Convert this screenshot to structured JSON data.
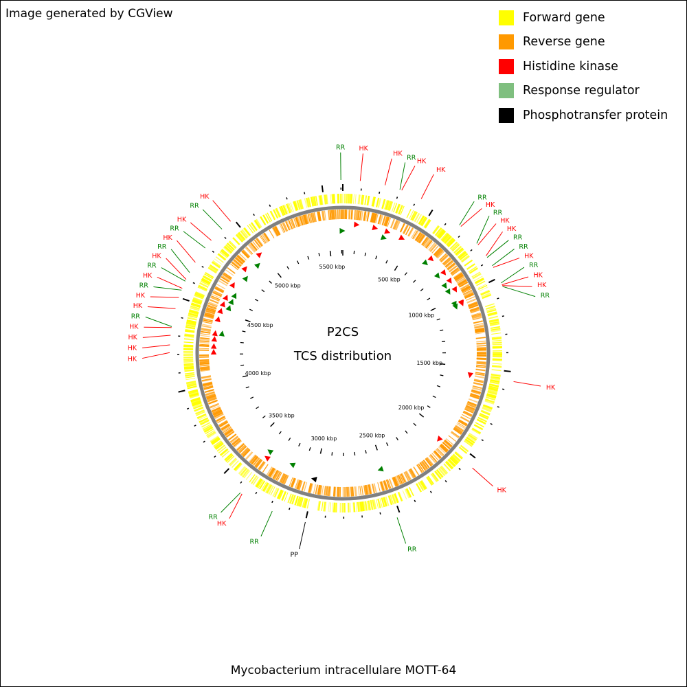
{
  "credit": "Image generated by CGView",
  "caption": "Mycobacterium intracellulare MOTT-64",
  "center": {
    "line1": "P2CS",
    "line2": "TCS distribution"
  },
  "colors": {
    "forward_gene": "#ffff00",
    "reverse_gene": "#ff9900",
    "histidine_kinase": "#ff0000",
    "response_regulator": "#008000",
    "phosphotransfer_protein": "#000000",
    "backbone": "#808080"
  },
  "legend": [
    {
      "label": "Forward gene",
      "color": "#ffff00"
    },
    {
      "label": "Reverse gene",
      "color": "#ff9900"
    },
    {
      "label": "Histidine kinase",
      "color": "#ff0000"
    },
    {
      "label": "Response regulator",
      "color": "#7fbf7f"
    },
    {
      "label": "Phosphotransfer protein",
      "color": "#000000"
    }
  ],
  "genome_length_kbp": 5610,
  "tick_labels": [
    "500 kbp",
    "1000 kbp",
    "1500 kbp",
    "2000 kbp",
    "2500 kbp",
    "3000 kbp",
    "3500 kbp",
    "4000 kbp",
    "4500 kbp",
    "5000 kbp",
    "5500 kbp"
  ],
  "features": [
    {
      "type": "RR",
      "pos_kbp": 5600
    },
    {
      "type": "HK",
      "pos_kbp": 90
    },
    {
      "type": "HK",
      "pos_kbp": 220
    },
    {
      "type": "RR",
      "pos_kbp": 300
    },
    {
      "type": "HK",
      "pos_kbp": 310
    },
    {
      "type": "HK",
      "pos_kbp": 420
    },
    {
      "type": "RR",
      "pos_kbp": 660
    },
    {
      "type": "HK",
      "pos_kbp": 670
    },
    {
      "type": "RR",
      "pos_kbp": 790
    },
    {
      "type": "HK",
      "pos_kbp": 800
    },
    {
      "type": "HK",
      "pos_kbp": 870
    },
    {
      "type": "RR",
      "pos_kbp": 880
    },
    {
      "type": "RR",
      "pos_kbp": 930
    },
    {
      "type": "HK",
      "pos_kbp": 940
    },
    {
      "type": "RR",
      "pos_kbp": 1030
    },
    {
      "type": "HK",
      "pos_kbp": 1040
    },
    {
      "type": "HK",
      "pos_kbp": 1045
    },
    {
      "type": "RR",
      "pos_kbp": 1050
    },
    {
      "type": "HK",
      "pos_kbp": 1550
    },
    {
      "type": "HK",
      "pos_kbp": 2050
    },
    {
      "type": "RR",
      "pos_kbp": 2520
    },
    {
      "type": "PP",
      "pos_kbp": 3000
    },
    {
      "type": "RR",
      "pos_kbp": 3180
    },
    {
      "type": "HK",
      "pos_kbp": 3360
    },
    {
      "type": "RR",
      "pos_kbp": 3370
    },
    {
      "type": "HK",
      "pos_kbp": 4210
    },
    {
      "type": "HK",
      "pos_kbp": 4250
    },
    {
      "type": "HK",
      "pos_kbp": 4300
    },
    {
      "type": "HK",
      "pos_kbp": 4340
    },
    {
      "type": "RR",
      "pos_kbp": 4345
    },
    {
      "type": "HK",
      "pos_kbp": 4440
    },
    {
      "type": "HK",
      "pos_kbp": 4500
    },
    {
      "type": "RR",
      "pos_kbp": 4540
    },
    {
      "type": "HK",
      "pos_kbp": 4550
    },
    {
      "type": "RR",
      "pos_kbp": 4590
    },
    {
      "type": "HK",
      "pos_kbp": 4600
    },
    {
      "type": "RR",
      "pos_kbp": 4640
    },
    {
      "type": "HK",
      "pos_kbp": 4700
    },
    {
      "type": "RR",
      "pos_kbp": 4790
    },
    {
      "type": "HK",
      "pos_kbp": 4840
    },
    {
      "type": "RR",
      "pos_kbp": 4920
    },
    {
      "type": "HK",
      "pos_kbp": 4980
    }
  ]
}
